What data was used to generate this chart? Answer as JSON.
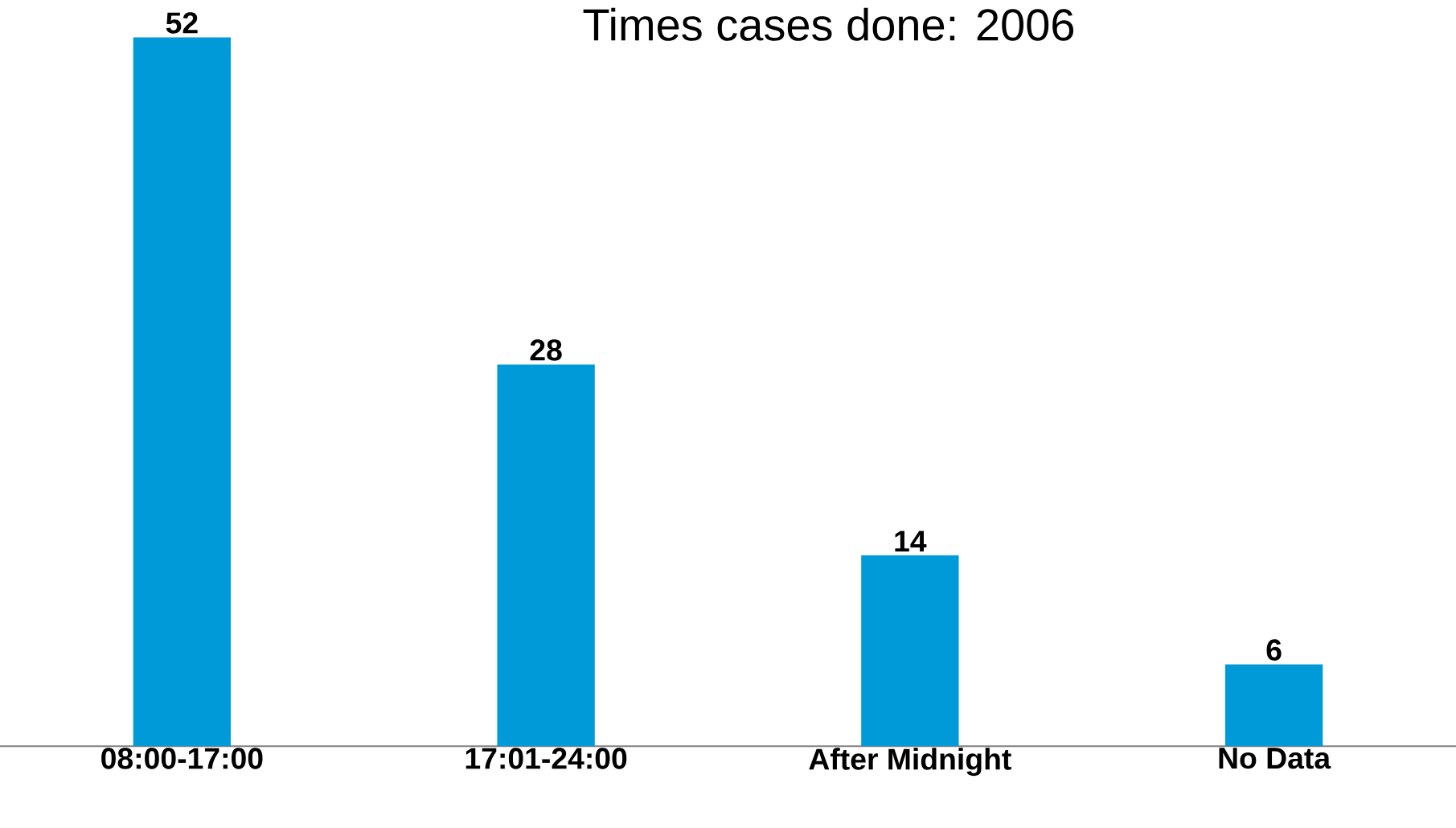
{
  "chart_data": {
    "type": "bar",
    "title": "Times cases done: 2006",
    "categories": [
      "08:00-17:00",
      "17:01-24:00",
      "After Midnight",
      "No Data"
    ],
    "values": [
      52,
      28,
      14,
      6
    ],
    "color": "#009ad8",
    "data_labels": true
  }
}
